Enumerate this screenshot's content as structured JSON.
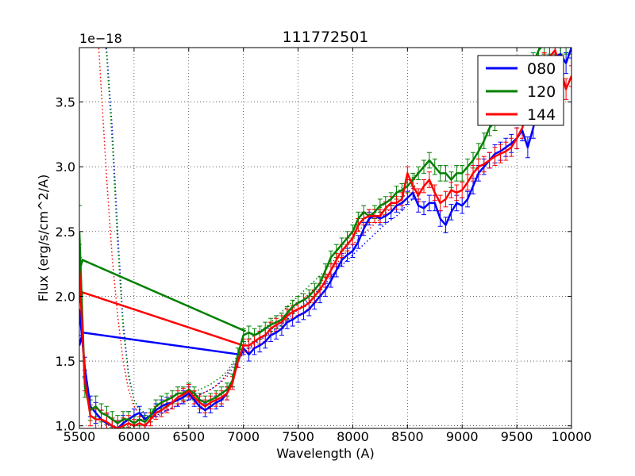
{
  "chart_data": {
    "type": "line",
    "title": "111772501",
    "xlabel": "Wavelength (A)",
    "ylabel": "Flux (erg/s/cm^2/A)",
    "y_offset_label": "1e−18",
    "xlim": [
      5500,
      10000
    ],
    "ylim": [
      0.98,
      3.92
    ],
    "x_ticks": [
      5500,
      6000,
      6500,
      7000,
      7500,
      8000,
      8500,
      9000,
      9500,
      10000
    ],
    "y_ticks": [
      1.0,
      1.5,
      2.0,
      2.5,
      3.0,
      3.5
    ],
    "x_tick_labels": [
      "5500",
      "6000",
      "6500",
      "7000",
      "7500",
      "8000",
      "8500",
      "9000",
      "9500",
      "10000"
    ],
    "y_tick_labels": [
      "1.0",
      "1.5",
      "2.0",
      "2.5",
      "3.0",
      "3.5"
    ],
    "grid": true,
    "legend_position": "top-right",
    "x": [
      5500,
      5550,
      5600,
      5650,
      5700,
      5750,
      5800,
      5850,
      5900,
      5950,
      6000,
      6050,
      6100,
      6150,
      6200,
      6250,
      6300,
      6350,
      6400,
      6450,
      6500,
      6550,
      6600,
      6650,
      6700,
      6750,
      6800,
      6850,
      6900,
      6950,
      7000,
      7050,
      7100,
      7150,
      7200,
      7250,
      7300,
      7350,
      7400,
      7450,
      7500,
      7550,
      7600,
      7650,
      7700,
      7750,
      7800,
      7850,
      7900,
      7950,
      8000,
      8050,
      8100,
      8150,
      8200,
      8250,
      8300,
      8350,
      8400,
      8450,
      8500,
      8550,
      8600,
      8650,
      8700,
      8750,
      8800,
      8850,
      8900,
      8950,
      9000,
      9050,
      9100,
      9150,
      9200,
      9250,
      9300,
      9350,
      9400,
      9450,
      9500,
      9550,
      9600,
      9650,
      9700,
      9750,
      9800,
      9850,
      9900,
      9950,
      10000
    ],
    "series": [
      {
        "name": "080",
        "color": "#0000ff",
        "values": [
          1.9,
          1.45,
          1.15,
          1.1,
          1.05,
          1.02,
          1.0,
          0.98,
          1.02,
          1.05,
          1.08,
          1.1,
          1.05,
          1.08,
          1.12,
          1.15,
          1.17,
          1.18,
          1.2,
          1.22,
          1.25,
          1.2,
          1.15,
          1.12,
          1.15,
          1.18,
          1.2,
          1.25,
          1.35,
          1.5,
          1.6,
          1.55,
          1.6,
          1.62,
          1.65,
          1.7,
          1.72,
          1.75,
          1.8,
          1.82,
          1.85,
          1.87,
          1.9,
          1.95,
          2.0,
          2.05,
          2.12,
          2.2,
          2.28,
          2.32,
          2.35,
          2.42,
          2.52,
          2.6,
          2.62,
          2.6,
          2.62,
          2.65,
          2.7,
          2.72,
          2.76,
          2.8,
          2.7,
          2.68,
          2.72,
          2.72,
          2.6,
          2.55,
          2.65,
          2.72,
          2.7,
          2.75,
          2.85,
          2.95,
          3.0,
          3.05,
          3.1,
          3.12,
          3.15,
          3.18,
          3.22,
          3.28,
          3.15,
          3.3,
          3.5,
          3.65,
          3.78,
          3.85,
          3.87,
          3.8,
          3.92
        ],
        "errors": [
          0.2,
          0.08,
          0.08,
          0.08,
          0.07,
          0.07,
          0.06,
          0.06,
          0.06,
          0.06,
          0.05,
          0.05,
          0.05,
          0.05,
          0.05,
          0.05,
          0.05,
          0.05,
          0.05,
          0.05,
          0.05,
          0.05,
          0.05,
          0.05,
          0.05,
          0.05,
          0.05,
          0.05,
          0.05,
          0.05,
          0.05,
          0.05,
          0.05,
          0.05,
          0.05,
          0.05,
          0.05,
          0.05,
          0.05,
          0.05,
          0.05,
          0.05,
          0.05,
          0.05,
          0.05,
          0.05,
          0.05,
          0.05,
          0.05,
          0.05,
          0.05,
          0.05,
          0.05,
          0.05,
          0.05,
          0.05,
          0.05,
          0.05,
          0.05,
          0.05,
          0.05,
          0.05,
          0.05,
          0.05,
          0.06,
          0.06,
          0.06,
          0.06,
          0.06,
          0.06,
          0.06,
          0.06,
          0.06,
          0.06,
          0.06,
          0.06,
          0.07,
          0.07,
          0.07,
          0.07,
          0.08,
          0.08,
          0.08,
          0.08,
          0.08,
          0.08,
          0.08,
          0.08,
          0.08,
          0.08,
          0.08
        ]
      },
      {
        "name": "120",
        "color": "#008000",
        "values": [
          2.5,
          1.3,
          1.12,
          1.15,
          1.1,
          1.08,
          1.05,
          1.02,
          1.05,
          1.05,
          1.02,
          1.05,
          1.03,
          1.08,
          1.15,
          1.18,
          1.2,
          1.22,
          1.25,
          1.25,
          1.28,
          1.25,
          1.2,
          1.18,
          1.2,
          1.22,
          1.25,
          1.28,
          1.35,
          1.55,
          1.7,
          1.72,
          1.7,
          1.72,
          1.75,
          1.78,
          1.8,
          1.82,
          1.87,
          1.92,
          1.95,
          1.97,
          2.0,
          2.05,
          2.1,
          2.2,
          2.3,
          2.35,
          2.4,
          2.45,
          2.5,
          2.6,
          2.65,
          2.62,
          2.65,
          2.7,
          2.72,
          2.75,
          2.8,
          2.82,
          2.85,
          2.9,
          2.95,
          3.0,
          3.05,
          3.0,
          2.95,
          2.95,
          2.9,
          2.95,
          2.95,
          3.0,
          3.05,
          3.12,
          3.2,
          3.3,
          3.35,
          3.4,
          3.45,
          3.52,
          3.6,
          3.65,
          3.72,
          3.8,
          3.9,
          3.95,
          3.95,
          3.95,
          3.95,
          3.95,
          3.95
        ],
        "errors": [
          0.2,
          0.08,
          0.08,
          0.08,
          0.07,
          0.07,
          0.06,
          0.06,
          0.06,
          0.06,
          0.05,
          0.05,
          0.05,
          0.05,
          0.05,
          0.05,
          0.05,
          0.05,
          0.05,
          0.05,
          0.05,
          0.05,
          0.05,
          0.05,
          0.05,
          0.05,
          0.05,
          0.05,
          0.05,
          0.05,
          0.05,
          0.05,
          0.05,
          0.05,
          0.05,
          0.05,
          0.05,
          0.05,
          0.05,
          0.05,
          0.05,
          0.05,
          0.05,
          0.05,
          0.05,
          0.05,
          0.05,
          0.05,
          0.05,
          0.05,
          0.05,
          0.05,
          0.05,
          0.05,
          0.05,
          0.05,
          0.05,
          0.05,
          0.05,
          0.05,
          0.05,
          0.05,
          0.05,
          0.05,
          0.06,
          0.06,
          0.06,
          0.06,
          0.06,
          0.06,
          0.06,
          0.06,
          0.06,
          0.06,
          0.06,
          0.06,
          0.07,
          0.07,
          0.07,
          0.07,
          0.08,
          0.08,
          0.08,
          0.08,
          0.08,
          0.08,
          0.08,
          0.08,
          0.08,
          0.08,
          0.08
        ]
      },
      {
        "name": "144",
        "color": "#ff0000",
        "values": [
          2.2,
          1.35,
          1.08,
          1.05,
          1.05,
          1.03,
          1.0,
          0.98,
          1.0,
          1.02,
          1.0,
          1.02,
          1.0,
          1.05,
          1.1,
          1.12,
          1.15,
          1.18,
          1.22,
          1.24,
          1.27,
          1.22,
          1.18,
          1.15,
          1.18,
          1.2,
          1.22,
          1.25,
          1.33,
          1.5,
          1.62,
          1.62,
          1.65,
          1.68,
          1.7,
          1.75,
          1.78,
          1.8,
          1.85,
          1.88,
          1.9,
          1.92,
          1.95,
          2.0,
          2.05,
          2.12,
          2.2,
          2.28,
          2.35,
          2.4,
          2.45,
          2.55,
          2.6,
          2.62,
          2.62,
          2.62,
          2.68,
          2.72,
          2.72,
          2.75,
          2.95,
          2.85,
          2.78,
          2.85,
          2.9,
          2.8,
          2.72,
          2.75,
          2.82,
          2.8,
          2.82,
          2.88,
          2.95,
          3.0,
          3.02,
          3.05,
          3.08,
          3.1,
          3.12,
          3.15,
          3.22,
          3.3,
          3.45,
          3.6,
          3.7,
          3.8,
          3.85,
          3.9,
          3.75,
          3.6,
          3.7
        ],
        "errors": [
          0.2,
          0.08,
          0.08,
          0.08,
          0.07,
          0.07,
          0.06,
          0.06,
          0.06,
          0.06,
          0.05,
          0.05,
          0.05,
          0.05,
          0.05,
          0.05,
          0.05,
          0.05,
          0.05,
          0.05,
          0.05,
          0.05,
          0.05,
          0.05,
          0.05,
          0.05,
          0.05,
          0.05,
          0.05,
          0.05,
          0.05,
          0.05,
          0.05,
          0.05,
          0.05,
          0.05,
          0.05,
          0.05,
          0.05,
          0.05,
          0.05,
          0.05,
          0.05,
          0.05,
          0.05,
          0.05,
          0.05,
          0.05,
          0.05,
          0.05,
          0.05,
          0.05,
          0.05,
          0.05,
          0.05,
          0.05,
          0.05,
          0.05,
          0.05,
          0.05,
          0.05,
          0.05,
          0.05,
          0.05,
          0.06,
          0.06,
          0.06,
          0.06,
          0.06,
          0.06,
          0.06,
          0.06,
          0.06,
          0.06,
          0.06,
          0.06,
          0.07,
          0.07,
          0.07,
          0.07,
          0.08,
          0.08,
          0.08,
          0.08,
          0.08,
          0.08,
          0.08,
          0.08,
          0.08,
          0.08,
          0.08
        ]
      }
    ],
    "model_curves": [
      {
        "series": "080",
        "color": "#0000ff",
        "style": "dotted",
        "x": [
          5700,
          5750,
          5800,
          5850,
          5900,
          5950,
          6000,
          6050,
          6100,
          6150,
          6200,
          6250,
          6300,
          6350,
          6400,
          6450,
          6500,
          6550,
          6600,
          6650,
          6700,
          6750,
          6800,
          6850,
          6900,
          6950,
          7000,
          7050,
          7100,
          7150,
          7200,
          7250,
          7300,
          7350,
          7400,
          7450,
          7500,
          7550,
          7600,
          7650,
          7700,
          7750,
          7800,
          7850,
          7900,
          7950,
          8000,
          8050,
          8100,
          8150,
          8200,
          8250,
          8300,
          8350,
          8400,
          8450,
          8500,
          8550,
          8600
        ],
        "values": [
          4.3,
          3.9,
          3.3,
          2.5,
          1.8,
          1.4,
          1.2,
          1.12,
          1.08,
          1.07,
          1.08,
          1.1,
          1.12,
          1.14,
          1.16,
          1.18,
          1.2,
          1.22,
          1.24,
          1.26,
          1.28,
          1.31,
          1.35,
          1.4,
          1.46,
          1.52,
          1.57,
          1.6,
          1.63,
          1.66,
          1.69,
          1.72,
          1.75,
          1.78,
          1.82,
          1.86,
          1.9,
          1.94,
          1.98,
          2.02,
          2.06,
          2.1,
          2.15,
          2.2,
          2.24,
          2.28,
          2.32,
          2.36,
          2.4,
          2.44,
          2.48,
          2.52,
          2.56,
          2.59,
          2.62,
          2.66,
          2.72,
          2.75,
          2.78
        ]
      },
      {
        "series": "120",
        "color": "#008000",
        "style": "dotted",
        "x": [
          5700,
          5750,
          5800,
          5850,
          5900,
          5950,
          6000,
          6050,
          6100,
          6150,
          6200,
          6250,
          6300,
          6350,
          6400,
          6450,
          6500,
          6550,
          6600,
          6650,
          6700,
          6750,
          6800,
          6850,
          6900,
          6950,
          7000,
          7050,
          7100,
          7150,
          7200,
          7250,
          7300,
          7350,
          7400,
          7450,
          7500,
          7550,
          7600,
          7650,
          7700,
          7750,
          7800,
          7850,
          7900,
          7950,
          8000,
          8050,
          8100,
          8150,
          8200,
          8250,
          8300,
          8350,
          8400,
          8450,
          8500,
          8550,
          8600
        ],
        "values": [
          4.3,
          3.85,
          3.2,
          2.4,
          1.75,
          1.38,
          1.2,
          1.13,
          1.1,
          1.1,
          1.12,
          1.14,
          1.16,
          1.18,
          1.2,
          1.22,
          1.24,
          1.26,
          1.28,
          1.3,
          1.32,
          1.35,
          1.38,
          1.42,
          1.48,
          1.55,
          1.62,
          1.66,
          1.7,
          1.73,
          1.76,
          1.8,
          1.84,
          1.88,
          1.92,
          1.96,
          2.0,
          2.04,
          2.08,
          2.12,
          2.16,
          2.2,
          2.25,
          2.3,
          2.35,
          2.4,
          2.45,
          2.5,
          2.55,
          2.6,
          2.64,
          2.68,
          2.72,
          2.76,
          2.8,
          2.84,
          2.88,
          2.92,
          2.96
        ]
      },
      {
        "series": "144",
        "color": "#ff0000",
        "style": "dotted",
        "x": [
          5650,
          5700,
          5750,
          5800,
          5850,
          5900,
          5950,
          6000,
          6050,
          6100,
          6150,
          6200,
          6250,
          6300,
          6350,
          6400,
          6450,
          6500,
          6550,
          6600,
          6650,
          6700,
          6750,
          6800,
          6850,
          6900,
          6950,
          7000,
          7050,
          7100,
          7150,
          7200,
          7250,
          7300,
          7350,
          7400,
          7450,
          7500,
          7550,
          7600,
          7650,
          7700,
          7750,
          7800,
          7850,
          7900,
          7950,
          8000,
          8050,
          8100,
          8150,
          8200,
          8250,
          8300,
          8350,
          8400,
          8450,
          8500,
          8550,
          8600
        ],
        "values": [
          4.3,
          3.6,
          2.9,
          2.3,
          1.85,
          1.5,
          1.28,
          1.15,
          1.08,
          1.05,
          1.05,
          1.07,
          1.09,
          1.12,
          1.14,
          1.16,
          1.18,
          1.2,
          1.22,
          1.24,
          1.26,
          1.28,
          1.31,
          1.34,
          1.38,
          1.44,
          1.5,
          1.56,
          1.6,
          1.64,
          1.67,
          1.7,
          1.74,
          1.78,
          1.82,
          1.86,
          1.9,
          1.94,
          1.98,
          2.02,
          2.06,
          2.1,
          2.15,
          2.2,
          2.25,
          2.3,
          2.35,
          2.4,
          2.44,
          2.48,
          2.52,
          2.56,
          2.6,
          2.64,
          2.68,
          2.72,
          2.76,
          2.8,
          2.84,
          2.88
        ]
      }
    ],
    "connector_lines": [
      {
        "series": "080",
        "color": "#0000ff",
        "x": [
          5500,
          5530,
          6970
        ],
        "y": [
          1.62,
          1.72,
          1.55
        ]
      },
      {
        "series": "120",
        "color": "#008000",
        "x": [
          5500,
          5530,
          7020
        ],
        "y": [
          2.2,
          2.28,
          1.73
        ]
      },
      {
        "series": "144",
        "color": "#ff0000",
        "x": [
          5500,
          5530,
          7000
        ],
        "y": [
          1.95,
          2.03,
          1.62
        ]
      }
    ]
  }
}
